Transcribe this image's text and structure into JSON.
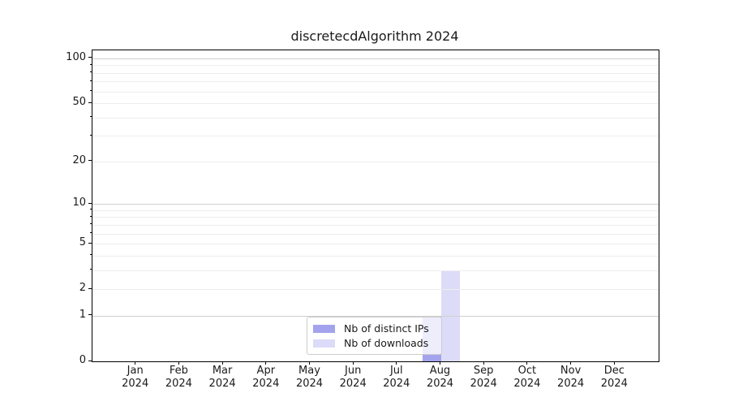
{
  "figure": {
    "title": "discretecdAlgorithm 2024"
  },
  "chart_data": {
    "type": "bar",
    "title": "discretecdAlgorithm 2024",
    "categories": [
      "Jan 2024",
      "Feb 2024",
      "Mar 2024",
      "Apr 2024",
      "May 2024",
      "Jun 2024",
      "Jul 2024",
      "Aug 2024",
      "Sep 2024",
      "Oct 2024",
      "Nov 2024",
      "Dec 2024"
    ],
    "x_tick_months": [
      "Jan",
      "Feb",
      "Mar",
      "Apr",
      "May",
      "Jun",
      "Jul",
      "Aug",
      "Sep",
      "Oct",
      "Nov",
      "Dec"
    ],
    "x_tick_year": "2024",
    "series": [
      {
        "name": "Nb of distinct IPs",
        "color": "#a3a3ed",
        "values": [
          0,
          0,
          0,
          0,
          0,
          0,
          0,
          1,
          0,
          0,
          0,
          0
        ]
      },
      {
        "name": "Nb of downloads",
        "color": "#dcdcf8",
        "values": [
          0,
          0,
          0,
          0,
          0,
          0,
          0,
          3,
          0,
          0,
          0,
          0
        ]
      }
    ],
    "y_axis": {
      "scale": "log1p",
      "range": [
        0,
        100
      ],
      "tick_values": [
        0,
        1,
        2,
        5,
        10,
        20,
        50,
        100
      ],
      "tick_labels": [
        "0",
        "1",
        "2",
        "5",
        "10",
        "20",
        "50",
        "100"
      ],
      "gridlines_major": [
        1,
        10,
        100
      ],
      "gridlines_minor": [
        2,
        3,
        4,
        5,
        6,
        7,
        8,
        9,
        20,
        30,
        40,
        50,
        60,
        70,
        80,
        90
      ]
    },
    "legend": {
      "position": "lower-center",
      "entries": [
        "Nb of distinct IPs",
        "Nb of downloads"
      ]
    },
    "grid": "both, drawn above bars"
  },
  "style_colors": {
    "background": "#ffffff",
    "axis": "#000000",
    "text": "#1a1a1a",
    "grid_major": "#cfcfcf",
    "grid_minor": "#ededed",
    "bar_distinct_ips": "#a3a3ed",
    "bar_downloads": "#dcdcf8",
    "legend_border": "#cccccc"
  }
}
